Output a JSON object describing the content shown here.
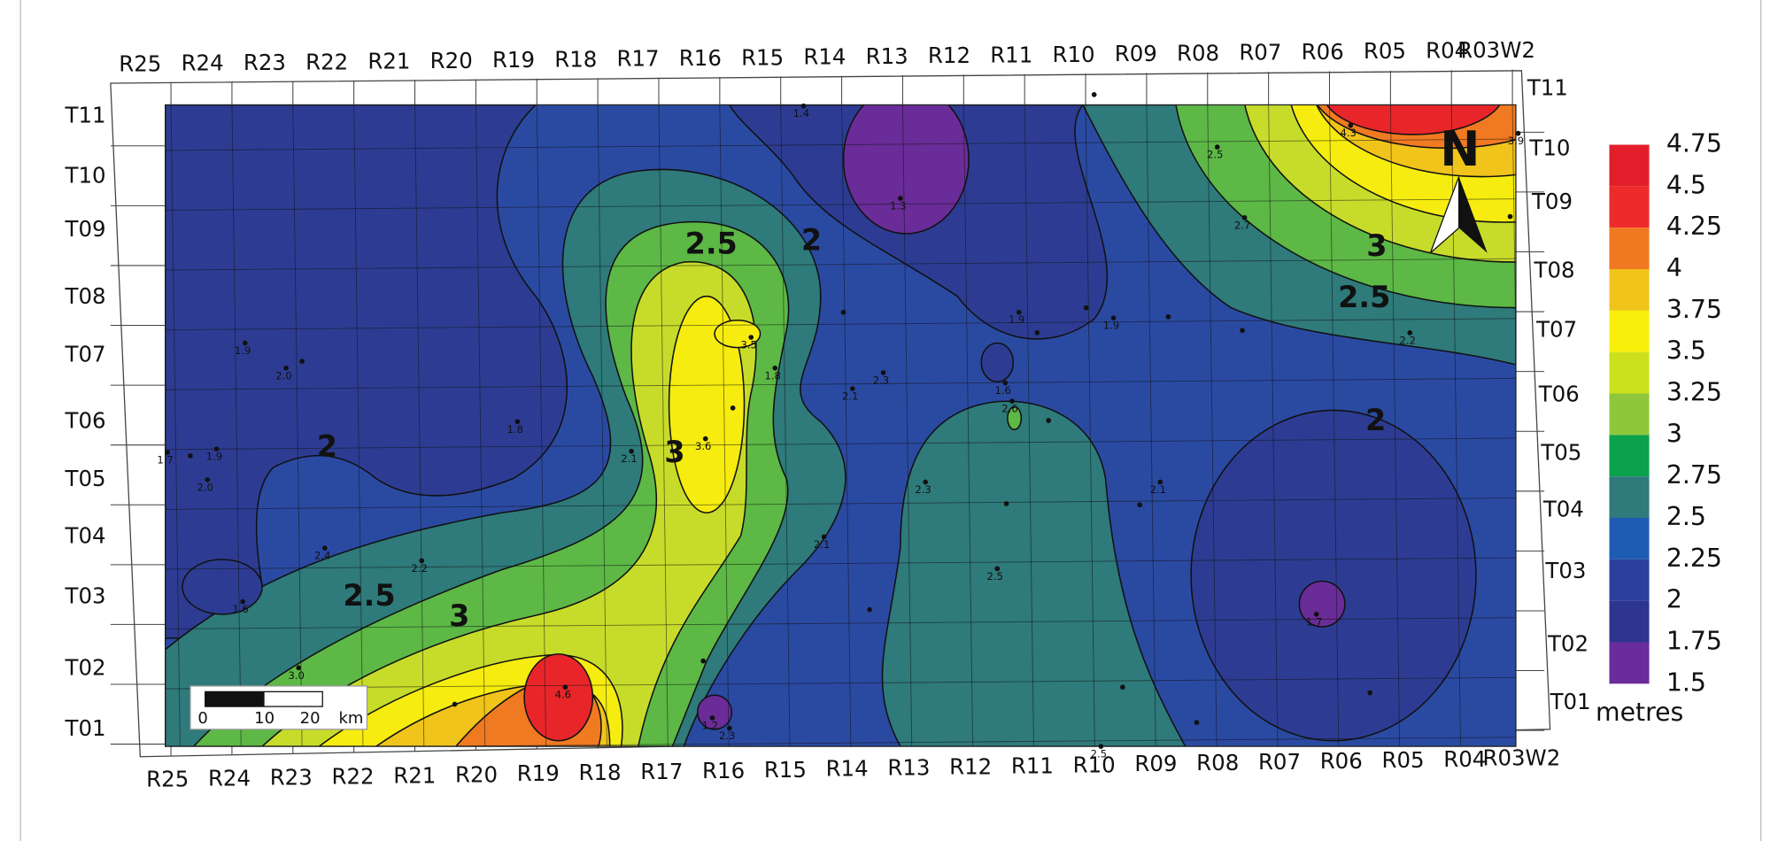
{
  "map": {
    "range_labels_top": [
      "R25",
      "R24",
      "R23",
      "R22",
      "R21",
      "R20",
      "R19",
      "R18",
      "R17",
      "R16",
      "R15",
      "R14",
      "R13",
      "R12",
      "R11",
      "R10",
      "R09",
      "R08",
      "R07",
      "R06",
      "R05",
      "R04",
      "R03W2"
    ],
    "range_labels_bottom": [
      "R25",
      "R24",
      "R23",
      "R22",
      "R21",
      "R20",
      "R19",
      "R18",
      "R17",
      "R16",
      "R15",
      "R14",
      "R13",
      "R12",
      "R11",
      "R10",
      "R09",
      "R08",
      "R07",
      "R06",
      "R05",
      "R04",
      "R03W2"
    ],
    "township_labels_left": [
      "T11",
      "T10",
      "T09",
      "T08",
      "T07",
      "T06",
      "T05",
      "T04",
      "T03",
      "T02",
      "T01"
    ],
    "township_labels_right": [
      "T11",
      "T10",
      "T09",
      "T08",
      "T07",
      "T06",
      "T05",
      "T04",
      "T03",
      "T02",
      "T01"
    ],
    "contour_labels": [
      "2.5",
      "2",
      "3",
      "2.5",
      "2",
      "2",
      "2.5",
      "3",
      "3"
    ],
    "point_labels": [
      "1.4",
      "1.3",
      "4.3",
      "3.9",
      "2.5",
      "2.7",
      "1.9",
      "1.9",
      "2.2",
      "1.9",
      "2.0",
      "3.5",
      "1.8",
      "2.3",
      "2.1",
      "1.6",
      "2.6",
      "1.8",
      "3.6",
      "1.7",
      "1.9",
      "2.1",
      "2.0",
      "2.3",
      "2.1",
      "2.1",
      "2.4",
      "2.2",
      "2.5",
      "1.6",
      "1.7",
      "3.0",
      "4.6",
      "1.2",
      "2.3",
      "2.5"
    ],
    "legend": {
      "labels": [
        "4.75",
        "4.5",
        "4.25",
        "4",
        "3.75",
        "3.5",
        "3.25",
        "3",
        "2.75",
        "2.5",
        "2.25",
        "2",
        "1.75",
        "1.5"
      ],
      "unit": "metres"
    },
    "scale_bar": {
      "labels": [
        "0",
        "10",
        "20",
        "km"
      ]
    },
    "north_label": "N"
  }
}
